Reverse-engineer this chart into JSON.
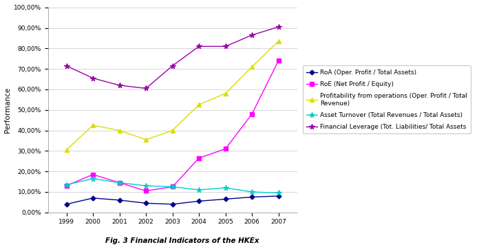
{
  "years": [
    1999,
    2000,
    2001,
    2002,
    2003,
    2004,
    2005,
    2006,
    2007
  ],
  "RoA": [
    0.04,
    0.07,
    0.06,
    0.045,
    0.04,
    0.055,
    0.065,
    0.075,
    0.08
  ],
  "RoE": [
    0.13,
    0.185,
    0.145,
    0.105,
    0.125,
    0.265,
    0.31,
    0.48,
    0.74
  ],
  "Profitability": [
    0.305,
    0.425,
    0.4,
    0.355,
    0.4,
    0.525,
    0.58,
    0.71,
    0.835
  ],
  "AssetTurnover": [
    0.135,
    0.165,
    0.145,
    0.13,
    0.125,
    0.11,
    0.12,
    0.1,
    0.095
  ],
  "FinancialLeverage": [
    0.715,
    0.655,
    0.62,
    0.605,
    0.715,
    0.81,
    0.81,
    0.865,
    0.905
  ],
  "RoA_color": "#00008B",
  "RoE_color": "#FF00FF",
  "Profitability_color": "#DDDD00",
  "AssetTurnover_color": "#00CCCC",
  "FinancialLeverage_color": "#9900AA",
  "legend_labels": {
    "RoA": "RoA (Oper. Profit / Total Assets)",
    "RoE": "RoE (Net Profit / Equity)",
    "Profitability": "Profitability from operations (Oper. Profit / Total\nRevenue)",
    "AssetTurnover": "Asset Turnover (Total Revenues / Total Assets)",
    "FinancialLeverage": "Financial Leverage (Tot. Liabilities/ Total Assets"
  },
  "ylabel": "Performance",
  "fig_caption": "Fig. 3 Financial Indicators of the HKEx",
  "ylim": [
    0.0,
    1.0
  ],
  "yticks": [
    0.0,
    0.1,
    0.2,
    0.3,
    0.4,
    0.5,
    0.6,
    0.7,
    0.8,
    0.9,
    1.0
  ],
  "ytick_labels": [
    "0,00%",
    "10,00%",
    "20,00%",
    "30,00%",
    "40,00%",
    "50,00%",
    "60,00%",
    "70,00%",
    "80,00%",
    "90,00%",
    "100,00%"
  ],
  "background_color": "#ffffff",
  "grid_color": "#d0d0d0"
}
